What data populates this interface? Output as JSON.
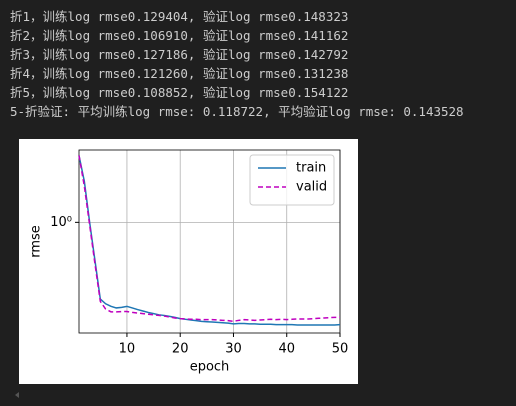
{
  "output_lines": [
    "折1，训练log rmse0.129404, 验证log rmse0.148323",
    "折2，训练log rmse0.106910, 验证log rmse0.141162",
    "折3，训练log rmse0.127186, 验证log rmse0.142792",
    "折4，训练log rmse0.121260, 验证log rmse0.131238",
    "折5，训练log rmse0.108852, 验证log rmse0.154122",
    "5-折验证: 平均训练log rmse: 0.118722, 平均验证log rmse: 0.143528"
  ],
  "chart_data": {
    "type": "line",
    "xlabel": "epoch",
    "ylabel": "rmse",
    "x": [
      1,
      2,
      3,
      4,
      5,
      6,
      7,
      8,
      9,
      10,
      11,
      12,
      13,
      14,
      15,
      16,
      17,
      18,
      19,
      20,
      21,
      22,
      23,
      24,
      25,
      26,
      27,
      28,
      29,
      30,
      31,
      32,
      33,
      34,
      35,
      36,
      37,
      38,
      39,
      40,
      41,
      42,
      43,
      44,
      45,
      46,
      47,
      48,
      49,
      50
    ],
    "xlim": [
      1,
      50
    ],
    "xticks": [
      10,
      20,
      30,
      40,
      50
    ],
    "ylim": [
      0.12,
      4.0
    ],
    "yscale": "log",
    "yticks": [
      {
        "value": 1,
        "label": "10⁰"
      }
    ],
    "grid": true,
    "legend": "upper right",
    "series": [
      {
        "name": "train",
        "color": "#1f77b4",
        "dash": false,
        "values": [
          3.6,
          2.2,
          1.0,
          0.48,
          0.23,
          0.21,
          0.2,
          0.194,
          0.196,
          0.2,
          0.194,
          0.188,
          0.183,
          0.178,
          0.174,
          0.17,
          0.168,
          0.165,
          0.162,
          0.158,
          0.156,
          0.154,
          0.152,
          0.15,
          0.149,
          0.148,
          0.147,
          0.146,
          0.145,
          0.143,
          0.144,
          0.144,
          0.143,
          0.143,
          0.142,
          0.142,
          0.142,
          0.141,
          0.141,
          0.141,
          0.141,
          0.14,
          0.14,
          0.14,
          0.14,
          0.14,
          0.14,
          0.14,
          0.14,
          0.141
        ]
      },
      {
        "name": "valid",
        "color": "#bf00bf",
        "dash": true,
        "values": [
          3.6,
          2.0,
          0.95,
          0.45,
          0.22,
          0.19,
          0.18,
          0.18,
          0.181,
          0.181,
          0.178,
          0.176,
          0.174,
          0.172,
          0.17,
          0.168,
          0.166,
          0.163,
          0.16,
          0.158,
          0.157,
          0.156,
          0.156,
          0.155,
          0.155,
          0.155,
          0.154,
          0.153,
          0.152,
          0.15,
          0.153,
          0.155,
          0.154,
          0.153,
          0.154,
          0.155,
          0.156,
          0.155,
          0.156,
          0.155,
          0.156,
          0.157,
          0.157,
          0.157,
          0.158,
          0.159,
          0.16,
          0.161,
          0.162,
          0.162
        ]
      }
    ]
  }
}
